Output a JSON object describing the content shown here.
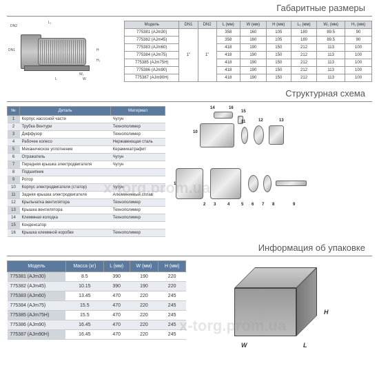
{
  "titles": {
    "dims": "Габаритные размеры",
    "struct": "Структурная схема",
    "pack": "Информация об упаковке"
  },
  "watermark": "x-torg.prom.ua",
  "dims": {
    "headers": [
      "Модель",
      "DN1",
      "DN2",
      "L (мм)",
      "W (мм)",
      "H (мм)",
      "L₁ (мм)",
      "W₁ (мм)",
      "H₁ (мм)"
    ],
    "dn": "1\"",
    "rows": [
      [
        "775381 (AJm30)",
        "358",
        "160",
        "105",
        "180",
        "89.5",
        "90"
      ],
      [
        "775382 (AJm45)",
        "358",
        "160",
        "105",
        "180",
        "89.5",
        "90"
      ],
      [
        "775383 (AJm60)",
        "418",
        "190",
        "150",
        "212",
        "113",
        "100"
      ],
      [
        "775384 (AJm75)",
        "418",
        "190",
        "150",
        "212",
        "113",
        "100"
      ],
      [
        "775385 (AJm75H)",
        "418",
        "190",
        "150",
        "212",
        "113",
        "100"
      ],
      [
        "775386 (AJm90)",
        "418",
        "190",
        "150",
        "212",
        "113",
        "100"
      ],
      [
        "775387 (AJm90H)",
        "418",
        "190",
        "150",
        "212",
        "113",
        "100"
      ]
    ],
    "diagram_labels": {
      "L": "L",
      "L1": "L₁",
      "W": "W",
      "W1": "W₁",
      "H": "H",
      "H1": "H₁",
      "DN1": "DN1",
      "DN2": "DN2"
    }
  },
  "parts": {
    "headers": [
      "№",
      "Деталь",
      "Материал"
    ],
    "rows": [
      [
        "1",
        "Корпус насосной части",
        "Чугун"
      ],
      [
        "2",
        "Трубка Вентури",
        "Технополимер"
      ],
      [
        "3",
        "Диффузор",
        "Технополимер"
      ],
      [
        "4",
        "Рабочее колесо",
        "Нержавеющая сталь"
      ],
      [
        "5",
        "Механическое уплотнение",
        "Керамика/графит"
      ],
      [
        "6",
        "Отражатель",
        "Чугун"
      ],
      [
        "7",
        "Передняя крышка электродвигателя",
        "Чугун"
      ],
      [
        "8",
        "Подшипник",
        ""
      ],
      [
        "9",
        "Ротор",
        ""
      ],
      [
        "10",
        "Корпус электродвигателя (статор)",
        "Чугун"
      ],
      [
        "11",
        "Задняя крышка электродвигателя",
        "Алюминиевый сплав"
      ],
      [
        "12",
        "Крыльчатка вентилятора",
        "Технополимер"
      ],
      [
        "13",
        "Крышка вентилятора",
        "Технополимер"
      ],
      [
        "14",
        "Клеммная колодка",
        "Технополимер"
      ],
      [
        "15",
        "Конденсатор",
        ""
      ],
      [
        "16",
        "Крышка клеммной коробки",
        "Технополимер"
      ]
    ]
  },
  "pack": {
    "headers": [
      "Модель",
      "Масса (кг)",
      "L (мм)",
      "W (мм)",
      "H (мм)"
    ],
    "rows": [
      [
        "775381 (AJm30)",
        "8.5",
        "390",
        "190",
        "220"
      ],
      [
        "775382 (AJm45)",
        "10.15",
        "390",
        "190",
        "220"
      ],
      [
        "775383 (AJm60)",
        "13.45",
        "470",
        "220",
        "245"
      ],
      [
        "775384 (AJm75)",
        "15.5",
        "470",
        "220",
        "245"
      ],
      [
        "775385 (AJm75H)",
        "15.5",
        "470",
        "220",
        "245"
      ],
      [
        "775386 (AJm90)",
        "16.45",
        "470",
        "220",
        "245"
      ],
      [
        "775387 (AJm90H)",
        "16.45",
        "470",
        "220",
        "245"
      ]
    ],
    "box_labels": {
      "L": "L",
      "W": "W",
      "H": "H"
    }
  },
  "exploded_labels": [
    "1",
    "2",
    "3",
    "4",
    "5",
    "6",
    "7",
    "8",
    "9",
    "10",
    "11",
    "12",
    "13",
    "14",
    "15",
    "16"
  ]
}
